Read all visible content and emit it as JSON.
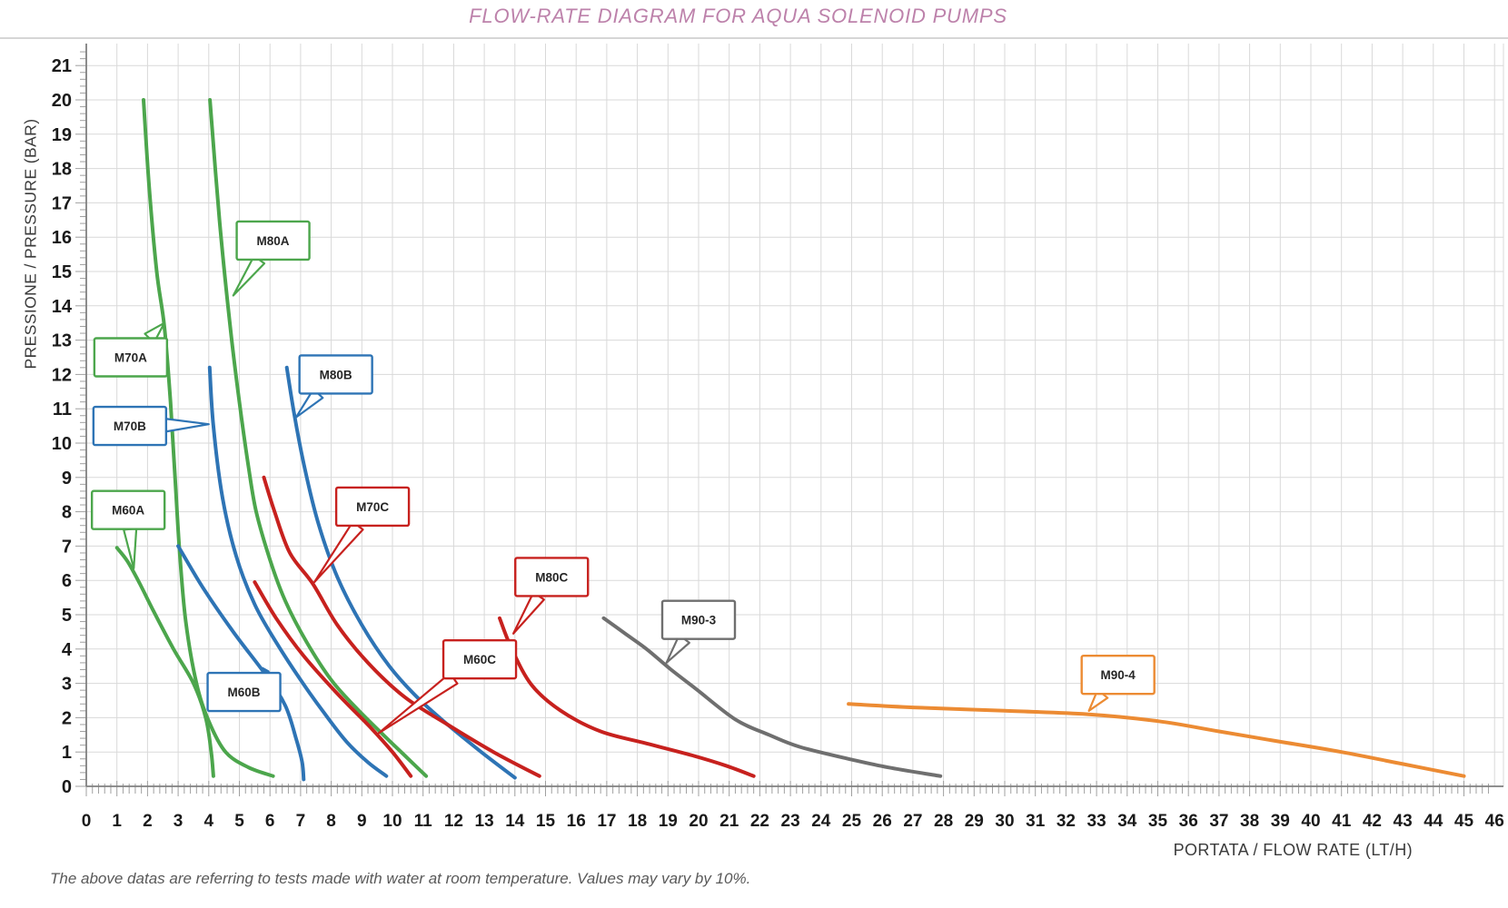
{
  "style": {
    "title_color": "#bd82ab",
    "grid_color": "#d9d9d9",
    "axis_color": "#808080",
    "tick_color": "#a0a0a0",
    "tick_label_color": "#1a1a1a",
    "axis_title_color": "#3b3b3b",
    "footnote_color": "#595959",
    "callout_text_color": "#262626",
    "background": "#ffffff"
  },
  "chart_data": {
    "type": "line",
    "title": "FLOW-RATE DIAGRAM FOR AQUA SOLENOID PUMPS",
    "xlabel": "PORTATA / FLOW RATE (LT/H)",
    "ylabel": "PRESSIONE / PRESSURE (BAR)",
    "footnote": "The above datas are referring to tests made with water at room temperature. Values may vary by 10%.",
    "xlim": [
      0,
      46
    ],
    "ylim": [
      0,
      21
    ],
    "grid": true,
    "legend_position": "inline-callouts",
    "x_ticks": [
      0,
      1,
      2,
      3,
      4,
      5,
      6,
      7,
      8,
      9,
      10,
      11,
      12,
      13,
      14,
      15,
      16,
      17,
      18,
      19,
      20,
      21,
      22,
      23,
      24,
      25,
      26,
      27,
      28,
      29,
      30,
      31,
      32,
      33,
      34,
      35,
      36,
      37,
      38,
      39,
      40,
      41,
      42,
      43,
      44,
      45,
      46
    ],
    "y_ticks": [
      0,
      1,
      2,
      3,
      4,
      5,
      6,
      7,
      8,
      9,
      10,
      11,
      12,
      13,
      14,
      15,
      16,
      17,
      18,
      19,
      20,
      21
    ],
    "series": [
      {
        "name": "M60A",
        "color": "#4CA64C",
        "label": {
          "x": 1.37,
          "y": 8.05,
          "ax": 1.55,
          "ay": 6.35
        },
        "points": [
          [
            1.0,
            6.95
          ],
          [
            1.35,
            6.55
          ],
          [
            1.75,
            5.9
          ],
          [
            2.2,
            5.1
          ],
          [
            2.85,
            4.0
          ],
          [
            3.5,
            3.0
          ],
          [
            3.9,
            2.0
          ],
          [
            4.08,
            1.0
          ],
          [
            4.15,
            0.3
          ]
        ]
      },
      {
        "name": "M70A",
        "color": "#4CA64C",
        "label": {
          "x": 1.45,
          "y": 12.5,
          "ax": 2.55,
          "ay": 13.5
        },
        "points": [
          [
            1.87,
            20.0
          ],
          [
            2.05,
            17.5
          ],
          [
            2.3,
            15.0
          ],
          [
            2.55,
            13.4
          ],
          [
            2.75,
            11.2
          ],
          [
            2.9,
            9.0
          ],
          [
            3.05,
            6.8
          ],
          [
            3.25,
            4.8
          ],
          [
            3.6,
            3.0
          ],
          [
            4.0,
            1.9
          ],
          [
            4.55,
            1.0
          ],
          [
            5.3,
            0.55
          ],
          [
            6.1,
            0.3
          ]
        ]
      },
      {
        "name": "M80A",
        "color": "#4CA64C",
        "label": {
          "x": 6.1,
          "y": 15.9,
          "ax": 4.8,
          "ay": 14.3
        },
        "points": [
          [
            4.04,
            20.0
          ],
          [
            4.35,
            16.5
          ],
          [
            4.7,
            13.4
          ],
          [
            5.0,
            11.2
          ],
          [
            5.3,
            9.3
          ],
          [
            5.55,
            8.0
          ],
          [
            6.0,
            6.6
          ],
          [
            6.5,
            5.4
          ],
          [
            7.2,
            4.2
          ],
          [
            8.0,
            3.1
          ],
          [
            8.8,
            2.3
          ],
          [
            9.7,
            1.5
          ],
          [
            10.4,
            0.9
          ],
          [
            11.1,
            0.3
          ]
        ]
      },
      {
        "name": "M60B",
        "color": "#2E74B5",
        "label": {
          "x": 5.15,
          "y": 2.75,
          "ax": 5.95,
          "ay": 3.35
        },
        "points": [
          [
            3.0,
            7.0
          ],
          [
            3.8,
            5.8
          ],
          [
            4.8,
            4.5
          ],
          [
            5.9,
            3.2
          ],
          [
            6.5,
            2.35
          ],
          [
            6.85,
            1.4
          ],
          [
            7.05,
            0.7
          ],
          [
            7.1,
            0.2
          ]
        ]
      },
      {
        "name": "M70B",
        "color": "#2E74B5",
        "label": {
          "x": 1.42,
          "y": 10.5,
          "ax": 4.0,
          "ay": 10.55
        },
        "points": [
          [
            4.03,
            12.2
          ],
          [
            4.15,
            10.5
          ],
          [
            4.45,
            8.4
          ],
          [
            4.9,
            6.7
          ],
          [
            5.5,
            5.3
          ],
          [
            6.2,
            4.2
          ],
          [
            7.0,
            3.1
          ],
          [
            7.8,
            2.1
          ],
          [
            8.5,
            1.3
          ],
          [
            9.2,
            0.7
          ],
          [
            9.8,
            0.3
          ]
        ]
      },
      {
        "name": "M80B",
        "color": "#2E74B5",
        "label": {
          "x": 8.15,
          "y": 12.0,
          "ax": 6.85,
          "ay": 10.75
        },
        "points": [
          [
            6.55,
            12.2
          ],
          [
            6.8,
            10.8
          ],
          [
            7.15,
            9.2
          ],
          [
            7.6,
            7.6
          ],
          [
            8.2,
            6.1
          ],
          [
            9.0,
            4.7
          ],
          [
            9.9,
            3.5
          ],
          [
            10.8,
            2.6
          ],
          [
            11.8,
            1.8
          ],
          [
            12.9,
            1.0
          ],
          [
            14.0,
            0.25
          ]
        ]
      },
      {
        "name": "M60C",
        "color": "#C7211E",
        "label": {
          "x": 12.85,
          "y": 3.7,
          "ax": 9.55,
          "ay": 1.55
        },
        "points": [
          [
            5.5,
            5.95
          ],
          [
            6.2,
            4.9
          ],
          [
            7.1,
            3.8
          ],
          [
            8.2,
            2.7
          ],
          [
            9.3,
            1.7
          ],
          [
            10.0,
            1.0
          ],
          [
            10.6,
            0.3
          ]
        ]
      },
      {
        "name": "M70C",
        "color": "#C7211E",
        "label": {
          "x": 9.35,
          "y": 8.15,
          "ax": 7.45,
          "ay": 5.95
        },
        "points": [
          [
            5.8,
            9.0
          ],
          [
            6.15,
            8.0
          ],
          [
            6.65,
            6.8
          ],
          [
            7.4,
            5.9
          ],
          [
            8.2,
            4.7
          ],
          [
            9.2,
            3.6
          ],
          [
            10.4,
            2.6
          ],
          [
            11.8,
            1.8
          ],
          [
            13.3,
            1.0
          ],
          [
            14.8,
            0.3
          ]
        ]
      },
      {
        "name": "M80C",
        "color": "#C7211E",
        "label": {
          "x": 15.2,
          "y": 6.1,
          "ax": 13.95,
          "ay": 4.45
        },
        "points": [
          [
            13.5,
            4.9
          ],
          [
            13.9,
            4.0
          ],
          [
            14.55,
            2.95
          ],
          [
            15.5,
            2.2
          ],
          [
            16.8,
            1.6
          ],
          [
            18.3,
            1.25
          ],
          [
            19.8,
            0.9
          ],
          [
            20.9,
            0.6
          ],
          [
            21.8,
            0.3
          ]
        ]
      },
      {
        "name": "M90-3",
        "color": "#6F6F6F",
        "label": {
          "x": 20.0,
          "y": 4.85,
          "ax": 18.95,
          "ay": 3.6
        },
        "points": [
          [
            16.9,
            4.9
          ],
          [
            17.6,
            4.45
          ],
          [
            18.3,
            4.0
          ],
          [
            19.1,
            3.4
          ],
          [
            19.9,
            2.85
          ],
          [
            21.2,
            1.95
          ],
          [
            22.3,
            1.5
          ],
          [
            23.3,
            1.15
          ],
          [
            24.9,
            0.8
          ],
          [
            26.2,
            0.55
          ],
          [
            27.9,
            0.3
          ]
        ]
      },
      {
        "name": "M90-4",
        "color": "#EC8B33",
        "label": {
          "x": 33.7,
          "y": 3.25,
          "ax": 32.75,
          "ay": 2.2
        },
        "points": [
          [
            24.9,
            2.4
          ],
          [
            27.0,
            2.3
          ],
          [
            30.0,
            2.2
          ],
          [
            32.7,
            2.1
          ],
          [
            35.0,
            1.9
          ],
          [
            37.0,
            1.6
          ],
          [
            39.0,
            1.3
          ],
          [
            41.0,
            1.0
          ],
          [
            43.0,
            0.65
          ],
          [
            45.0,
            0.3
          ]
        ]
      }
    ]
  }
}
